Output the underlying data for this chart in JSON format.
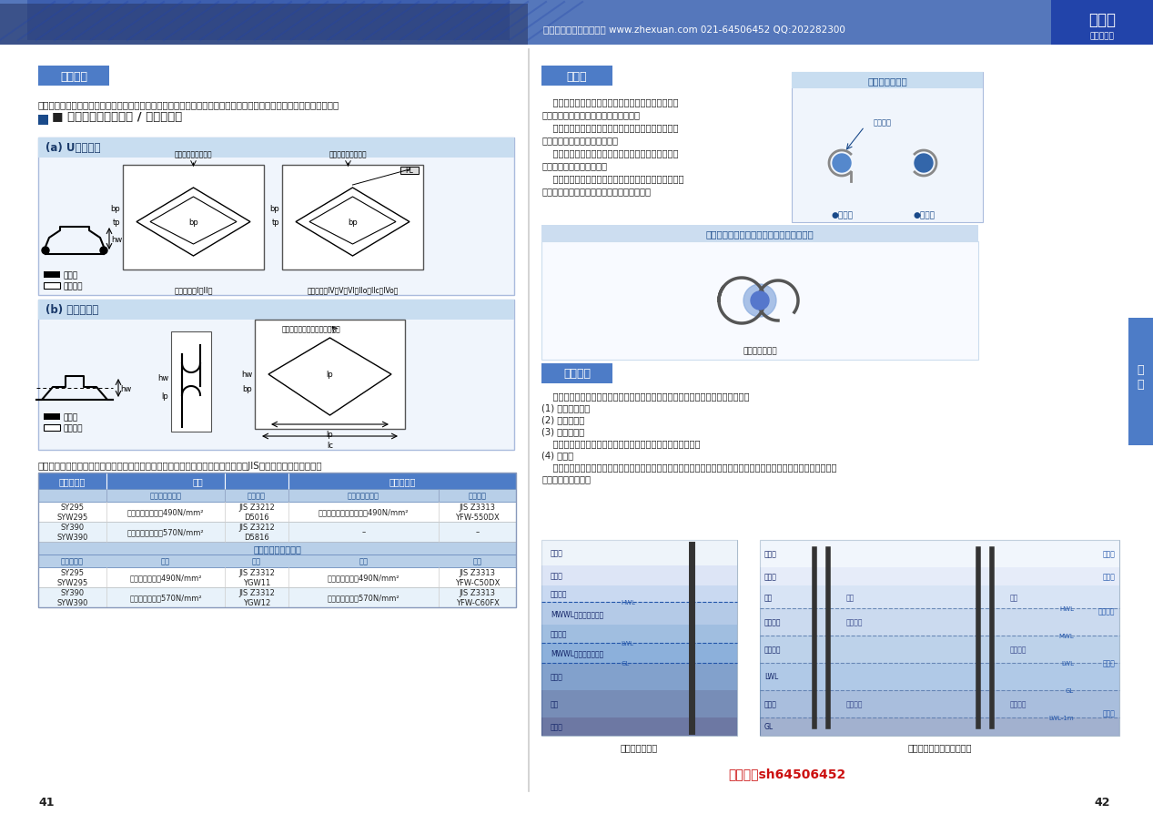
{
  "page_title_right": "钢板桩",
  "page_subtitle_right": "新日铁住金",
  "header_text": "上海海喆轩商贸有限公司 www.zhexuan.com 021-64506452 QQ:202282300",
  "page_numbers": [
    "41",
    "42"
  ],
  "bg_color": "#ffffff",
  "header_bg": "#5577bb",
  "header_bg_left": "#2a3a6a",
  "left_section_title": "连接方法",
  "right_section_title": "止水性",
  "corrosion_title": "防腐方法",
  "section_title_bg": "#4d7cc7",
  "weld_lock_title": "焊接锁口（临时结构 / 永久结构）",
  "subsection_a_title": "(a) U型钢板桩",
  "subsection_b_title": "(b) 槽型钢板桩",
  "left_body_text": "由于施工场地的限制及运输条件等各种原因，有时需要多根钢板桩进行连接以达到要求长度，最常用的连接方法为焊接。",
  "waterproof_text_1": "    钢材钢板桩连续组成的墙体本身就是止水结构。为了",
  "waterproof_text_2": "便于打桩，在锁口处预留了微小的缝隙。",
  "waterproof_text_3": "    众所周知，由于砂土不断进入锁口产生堵塞，因此锁",
  "waterproof_text_4": "口渗水量会随时间推移而减少。",
  "waterproof_text_5": "    若需要在打桩后立刻发挥止水效果或满足更严格的止",
  "waterproof_text_6": "水要求，应采取防渗措施。",
  "waterproof_text_7": "    最常用的方法为采用专用止水材料在锁口部进行涂层，",
  "waterproof_text_8": "目前有多种止水材料，请联系我们获取详情。",
  "waterproof_diagram_title": "止水材料概略图",
  "waterproof_state_title": "使用止水材料后的钢板桩锁口的吻合状态图",
  "label_apply": "●涂抹型",
  "label_fill": "●填充型",
  "label_membrane": "薄膜型止水材料",
  "label_watermat": "止水材料",
  "corrosion_text": [
    "    钢板桩防腐应当根据需要采用不同方法效果更佳。以下为常用的钢板桩防腐方法：",
    "(1) 考虑腐蚀裕量",
    "(2) 混凝土包覆",
    "(3) 钢板桩涂层",
    "    本方法有四种类型：涂层、有机衬贴、矿脂衬贴、无机衬贴。",
    "(4) 电防腐",
    "    本方法包括：外加电流阴极保护（由外部电源提供保护电流的阴极保护）、牺牲阳极保护（在钢材上安装铝锌等金属材",
    "料作为牺牲阳极）。"
  ],
  "bottom_text": "焊接时，需要根据母材的条件选择焊条，以确定钢板厚度和焊接位置。日本工业规格JIS的焊接规格，如下所示。",
  "welding_rows": [
    [
      "SY295\nSYW295",
      "低氢型焊材，等级490N/mm²",
      "JIS Z3212\nD5016",
      "气体保护焊丝焊材，等级490N/mm²",
      "JIS Z3313\nYFW-550DX"
    ],
    [
      "SY390\nSYW390",
      "低氢型焊材，等级570N/mm²",
      "JIS Z3212\nD5816",
      "–",
      "–"
    ]
  ],
  "co2_rows": [
    [
      "SY295\nSYW295",
      "实心焊丝，等级490N/mm²",
      "JIS Z3312\nYGW11",
      "药芯焊丝，等级490N/mm²",
      "JIS Z3313\nYFW-C50DX"
    ],
    [
      "SY390\nSYW390",
      "实心焊丝，等级570N/mm²",
      "JIS Z3312\nYGW12",
      "药芯焊丝，等级570N/mm²",
      "JIS Z3313\nYFW-C60FX"
    ]
  ],
  "co2_header": "二氧化碳气体保护焊",
  "table_bg_header": "#4d7cc7",
  "table_bg_subheader": "#b8cfe8",
  "table_bg_co2": "#b8cfe8",
  "table_bg_row1": "#ffffff",
  "table_bg_row2": "#e8f2fa",
  "blue_dark": "#1a4a8a",
  "blue_mid": "#4d7cc7",
  "blue_light": "#ccddf0",
  "text_dark": "#222222",
  "watermark_text": "微信号：sh64506452",
  "sidebar_labels": [
    "规\n格"
  ],
  "sidebar_bg": "#4d7cc7",
  "left_diagram_zones": [
    "大气区",
    "浪溅区",
    "水变化区",
    "MWWL（平均高水位）",
    "水安全处",
    "MWWL（平均高水位）",
    "水下区",
    "海床"
  ],
  "right_diagram_zones": [
    "大气区",
    "浪溅区",
    "涂层",
    "全属覆层",
    "金属覆层",
    "LWL",
    "水下区",
    "GL",
    "电解工法"
  ],
  "left_diag_title": "海域的腐蚀条件",
  "right_diag_title": "一般性防腐蚀措施使用示例"
}
